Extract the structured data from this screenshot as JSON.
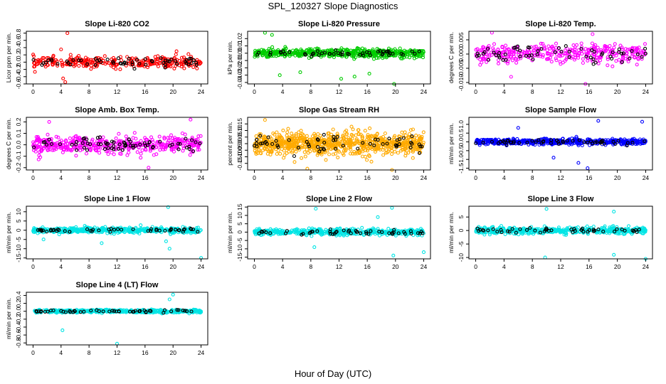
{
  "figure": {
    "title": "SPL_120327  Slope Diagnostics",
    "xlabel": "Hour of Day (UTC)"
  },
  "chart_data": [
    {
      "type": "scatter",
      "title": "Slope Li-820 CO2",
      "ylabel": "Licor ppm per min.",
      "color": "#ff0000",
      "xlim": [
        0,
        24
      ],
      "xticks": [
        0,
        4,
        8,
        12,
        16,
        20,
        24
      ],
      "ylim": [
        -0.6,
        0.85
      ],
      "yticks": [
        -0.6,
        -0.4,
        -0.2,
        0.0,
        0.2,
        0.4,
        0.6,
        0.8
      ],
      "ytick_labels": [
        "-0.6",
        "-0.4",
        "-0.2",
        "0.0",
        "0.2",
        "0.4",
        "0.6",
        "0.8"
      ],
      "spread": 0.14,
      "ncolor": 300,
      "nblack": 60,
      "outliers": [
        [
          4.9,
          0.8
        ],
        [
          4.6,
          -0.55
        ],
        [
          4.3,
          -0.45
        ],
        [
          4.0,
          0.35
        ],
        [
          20.5,
          0.3
        ]
      ]
    },
    {
      "type": "scatter",
      "title": "Slope Li-820 Pressure",
      "ylabel": "kPa per min.",
      "color": "#00cc00",
      "xlim": [
        0,
        24
      ],
      "xticks": [
        0,
        4,
        8,
        12,
        16,
        20,
        24
      ],
      "ylim": [
        -0.042,
        0.03
      ],
      "yticks": [
        -0.04,
        -0.03,
        -0.02,
        -0.01,
        0.0,
        0.01,
        0.02
      ],
      "ytick_labels": [
        "-0.04",
        "-0.03",
        "-0.02",
        "-0.01",
        "0.00",
        "0.01",
        "0.02"
      ],
      "spread": 0.005,
      "ncolor": 600,
      "nblack": 50,
      "outliers": [
        [
          1.5,
          0.028
        ],
        [
          2.5,
          0.025
        ],
        [
          12.3,
          -0.035
        ],
        [
          14.2,
          -0.032
        ],
        [
          16.3,
          -0.028
        ],
        [
          19.8,
          -0.043
        ],
        [
          3.6,
          -0.03
        ],
        [
          6.5,
          -0.026
        ]
      ]
    },
    {
      "type": "scatter",
      "title": "Slope Li-820 Temp.",
      "ylabel": "degrees C per min.",
      "color": "#ff00ff",
      "xlim": [
        0,
        24
      ],
      "xticks": [
        0,
        4,
        8,
        12,
        16,
        20,
        24
      ],
      "ylim": [
        -0.0105,
        0.008
      ],
      "yticks": [
        -0.01,
        -0.005,
        0.0,
        0.005
      ],
      "ytick_labels": [
        "-0.010",
        "-0.005",
        "0.000",
        "0.005"
      ],
      "spread": 0.003,
      "ncolor": 350,
      "nblack": 60,
      "outliers": [
        [
          2.3,
          0.0075
        ],
        [
          15.5,
          -0.011
        ],
        [
          16.5,
          0.007
        ],
        [
          5.0,
          -0.008
        ]
      ]
    },
    {
      "type": "scatter",
      "title": "Slope Amb. Box Temp.",
      "ylabel": "degrees C per min.",
      "color": "#ff00ff",
      "xlim": [
        0,
        24
      ],
      "xticks": [
        0,
        4,
        8,
        12,
        16,
        20,
        24
      ],
      "ylim": [
        -0.22,
        0.24
      ],
      "yticks": [
        -0.2,
        -0.1,
        0.0,
        0.1,
        0.2
      ],
      "ytick_labels": [
        "-0.2",
        "-0.1",
        "0.0",
        "0.1",
        "0.2"
      ],
      "spread": 0.07,
      "ncolor": 450,
      "nblack": 70,
      "outliers": [
        [
          2.3,
          0.2
        ],
        [
          16.5,
          -0.2
        ],
        [
          22.5,
          0.22
        ]
      ]
    },
    {
      "type": "scatter",
      "title": "Slope Gas Stream RH",
      "ylabel": "percent per min.",
      "color": "#ffaa00",
      "xlim": [
        0,
        24
      ],
      "xticks": [
        0,
        4,
        8,
        12,
        16,
        20,
        24
      ],
      "ylim": [
        -0.2,
        0.2
      ],
      "yticks": [
        -0.15,
        -0.1,
        -0.05,
        0.0,
        0.05,
        0.1,
        0.15
      ],
      "ytick_labels": [
        "-0.15",
        "-0.10",
        "-0.05",
        "0.00",
        "0.05",
        "0.10",
        "0.15"
      ],
      "spread": 0.075,
      "ncolor": 800,
      "nblack": 60,
      "outliers": [
        [
          1.5,
          0.18
        ],
        [
          7.5,
          -0.19
        ],
        [
          19.5,
          -0.2
        ]
      ]
    },
    {
      "type": "scatter",
      "title": "Slope Sample Flow",
      "ylabel": "ml/min per min.",
      "color": "#0000ff",
      "xlim": [
        0,
        24
      ],
      "xticks": [
        0,
        4,
        8,
        12,
        16,
        20,
        24
      ],
      "ylim": [
        -1.6,
        1.4
      ],
      "yticks": [
        -1.5,
        -1.0,
        -0.5,
        0.0,
        0.5,
        1.0
      ],
      "ytick_labels": [
        "-1.5",
        "-1.0",
        "-0.5",
        "0.0",
        "0.5",
        "1.0"
      ],
      "spread": 0.15,
      "ncolor": 500,
      "nblack": 50,
      "outliers": [
        [
          17.3,
          1.2
        ],
        [
          23.5,
          1.15
        ],
        [
          15.8,
          -1.5
        ],
        [
          14.5,
          -1.2
        ],
        [
          6.0,
          0.8
        ],
        [
          11.0,
          -0.9
        ]
      ]
    },
    {
      "type": "scatter",
      "title": "Slope Line 1 Flow",
      "ylabel": "ml/min per min.",
      "color": "#00e5e5",
      "xlim": [
        0,
        24
      ],
      "xticks": [
        0,
        4,
        8,
        12,
        16,
        20,
        24
      ],
      "ylim": [
        -15.5,
        13
      ],
      "yticks": [
        -15,
        -10,
        -5,
        0,
        5,
        10
      ],
      "ytick_labels": [
        "-15",
        "-10",
        "-5",
        "0",
        "5",
        "10"
      ],
      "spread": 1.3,
      "ncolor": 500,
      "nblack": 50,
      "outliers": [
        [
          19.3,
          12.5
        ],
        [
          19.5,
          -10
        ],
        [
          19.0,
          -6
        ],
        [
          24,
          -15
        ],
        [
          1.5,
          -5
        ],
        [
          9.8,
          -7
        ]
      ]
    },
    {
      "type": "scatter",
      "title": "Slope Line 2 Flow",
      "ylabel": "ml/min per min.",
      "color": "#00e5e5",
      "xlim": [
        0,
        24
      ],
      "xticks": [
        0,
        4,
        8,
        12,
        16,
        20,
        24
      ],
      "ylim": [
        -16,
        15.5
      ],
      "yticks": [
        -15,
        -10,
        -5,
        0,
        5,
        10,
        15
      ],
      "ytick_labels": [
        "-15",
        "-10",
        "-5",
        "0",
        "5",
        "10",
        "15"
      ],
      "spread": 1.6,
      "ncolor": 500,
      "nblack": 50,
      "outliers": [
        [
          8.7,
          14
        ],
        [
          19.5,
          14.5
        ],
        [
          19.7,
          -14
        ],
        [
          24,
          -12
        ],
        [
          8.5,
          -9
        ],
        [
          17.5,
          9
        ]
      ]
    },
    {
      "type": "scatter",
      "title": "Slope Line 3 Flow",
      "ylabel": "ml/min per min.",
      "color": "#00e5e5",
      "xlim": [
        0,
        24
      ],
      "xticks": [
        0,
        4,
        8,
        12,
        16,
        20,
        24
      ],
      "ylim": [
        -10.5,
        9
      ],
      "yticks": [
        -10,
        -5,
        0,
        5
      ],
      "ytick_labels": [
        "-10",
        "-5",
        "0",
        "5"
      ],
      "spread": 1.1,
      "ncolor": 450,
      "nblack": 50,
      "outliers": [
        [
          10.0,
          8
        ],
        [
          9.8,
          -10
        ],
        [
          19.5,
          7
        ],
        [
          24,
          -10.5
        ],
        [
          19.5,
          -9
        ]
      ]
    },
    {
      "type": "scatter",
      "title": "Slope Line 4 (LT) Flow",
      "ylabel": "ml/min per min.",
      "color": "#00e5e5",
      "xlim": [
        0,
        24
      ],
      "xticks": [
        0,
        4,
        8,
        12,
        16,
        20,
        24
      ],
      "ylim": [
        -0.85,
        0.48
      ],
      "yticks": [
        -0.8,
        -0.6,
        -0.4,
        -0.2,
        0.0,
        0.2,
        0.4
      ],
      "ytick_labels": [
        "-0.8",
        "-0.6",
        "-0.4",
        "-0.2",
        "0.0",
        "0.2",
        "0.4"
      ],
      "spread": 0.035,
      "ncolor": 450,
      "nblack": 50,
      "outliers": [
        [
          12.0,
          -0.82
        ],
        [
          4.2,
          -0.48
        ],
        [
          20.0,
          0.42
        ],
        [
          19.5,
          0.3
        ]
      ]
    }
  ]
}
